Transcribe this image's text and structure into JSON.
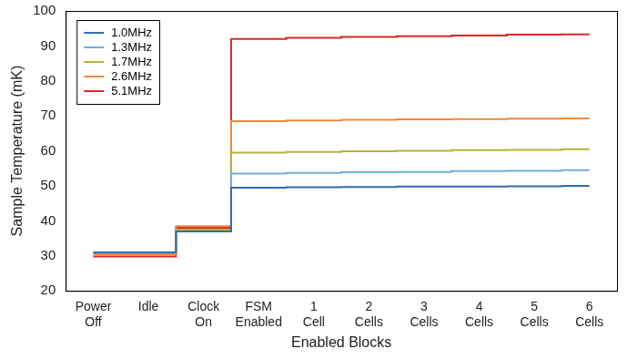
{
  "chart_data": {
    "type": "line",
    "x_label": "Enabled Blocks",
    "y_label": "Sample Temperature (mK)",
    "categories": [
      [
        "Power",
        "Off"
      ],
      [
        "Idle"
      ],
      [
        "Clock",
        "On"
      ],
      [
        "FSM",
        "Enabled"
      ],
      [
        "1",
        "Cell"
      ],
      [
        "2",
        "Cells"
      ],
      [
        "3",
        "Cells"
      ],
      [
        "4",
        "Cells"
      ],
      [
        "5",
        "Cells"
      ],
      [
        "6",
        "Cells"
      ]
    ],
    "series": [
      {
        "name": "1.0MHz",
        "color": "#2f6eb3",
        "values": [
          31,
          31,
          37,
          49.5,
          49.6,
          49.7,
          49.8,
          49.8,
          49.9,
          50
        ]
      },
      {
        "name": "1.3MHz",
        "color": "#6db1dc",
        "values": [
          31,
          31,
          37,
          53.5,
          53.7,
          53.9,
          54,
          54.2,
          54.3,
          54.5
        ]
      },
      {
        "name": "1.7MHz",
        "color": "#b8b23a",
        "values": [
          31,
          31,
          37.5,
          59.5,
          59.7,
          59.9,
          60,
          60.2,
          60.3,
          60.5
        ]
      },
      {
        "name": "2.6MHz",
        "color": "#ee8a3c",
        "values": [
          30.5,
          30.5,
          38.5,
          68.5,
          68.7,
          68.9,
          69,
          69.1,
          69.2,
          69.3
        ]
      },
      {
        "name": "5.1MHz",
        "color": "#d7282a",
        "values": [
          29.8,
          29.8,
          38,
          92,
          92.3,
          92.6,
          92.8,
          93,
          93.2,
          93.3
        ]
      }
    ],
    "ylim": [
      20,
      100
    ],
    "yticks": [
      20,
      30,
      40,
      50,
      60,
      70,
      80,
      90,
      100
    ],
    "grid": false,
    "legend": "upper left",
    "line_style": "steps-mid"
  }
}
